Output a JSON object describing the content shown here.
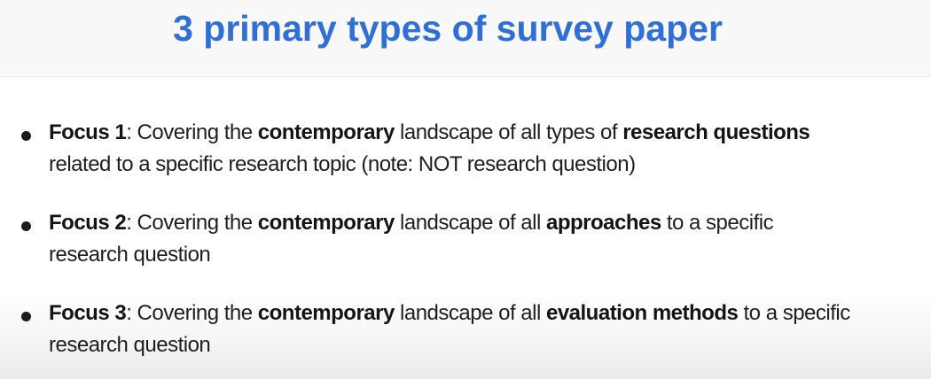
{
  "title": "3 primary types of survey paper",
  "bullets": [
    {
      "label": "Focus 1",
      "sep": ":",
      "t1": " Covering the ",
      "b1": "contemporary",
      "t2": " landscape of all types of ",
      "b2": "research questions",
      "line2": "related to a specific research topic (note: NOT research question)"
    },
    {
      "label": "Focus 2",
      "sep": ":",
      "t1": " Covering the ",
      "b1": "contemporary",
      "t2": " landscape of all ",
      "b2": "approaches",
      "t3": " to a specific",
      "line2": "research question"
    },
    {
      "label": "Focus 3",
      "sep": ":",
      "t1": " Covering the ",
      "b1": "contemporary",
      "t2": " landscape of all ",
      "b2": "evaluation methods",
      "t3": " to a specific",
      "line2": "research question"
    }
  ]
}
